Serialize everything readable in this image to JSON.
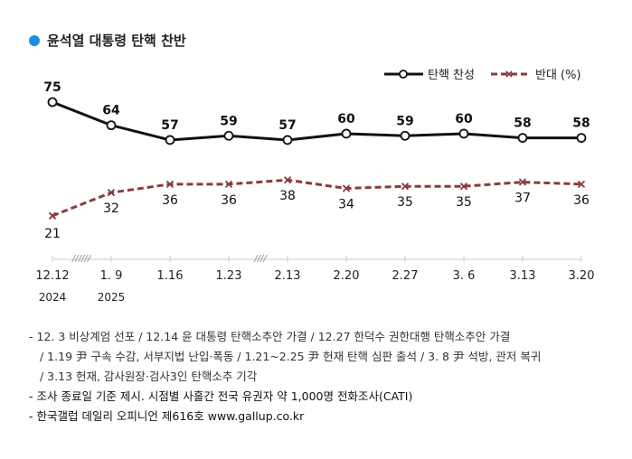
{
  "title": "윤석열 대통령 탄핵 찬반",
  "chart_data": {
    "type": "line",
    "title": "윤석열 대통령 탄핵 찬반",
    "categories": [
      "12.12",
      "1. 9",
      "1.16",
      "1.23",
      "2.13",
      "2.20",
      "2.27",
      "3. 6",
      "3.13",
      "3.20"
    ],
    "year_labels": {
      "0": "2024",
      "1": "2025"
    },
    "axis_breaks": [
      "//////",
      "////"
    ],
    "series": [
      {
        "name": "탄핵 찬성",
        "color": "#111111",
        "marker": "circle",
        "values": [
          75,
          64,
          57,
          59,
          57,
          60,
          59,
          60,
          58,
          58
        ]
      },
      {
        "name": "반대 (%)",
        "color": "#8b3a3a",
        "marker": "x",
        "dash": true,
        "values": [
          21,
          32,
          36,
          36,
          38,
          34,
          35,
          35,
          37,
          36
        ]
      }
    ],
    "ylim": [
      15,
      80
    ],
    "legend": "top-right"
  },
  "notes": [
    "- 12. 3 비상계엄 선포 / 12.14 윤 대통령 탄핵소추안 가결 / 12.27 한덕수 권한대행 탄핵소추안 가결",
    "/ 1.19 尹 구속 수감, 서부지법 난입·폭동 / 1.21~2.25 尹 헌재 탄핵 심판 출석 / 3. 8 尹 석방, 관저 복귀",
    "/ 3.13 헌재, 감사원장·검사3인 탄핵소추 기각",
    "- 조사 종료일 기준 제시. 시점별 사흘간 전국 유권자 약 1,000명 전화조사(CATI)",
    "- 한국갤럽 데일리 오피니언 제616호 www.gallup.co.kr"
  ]
}
